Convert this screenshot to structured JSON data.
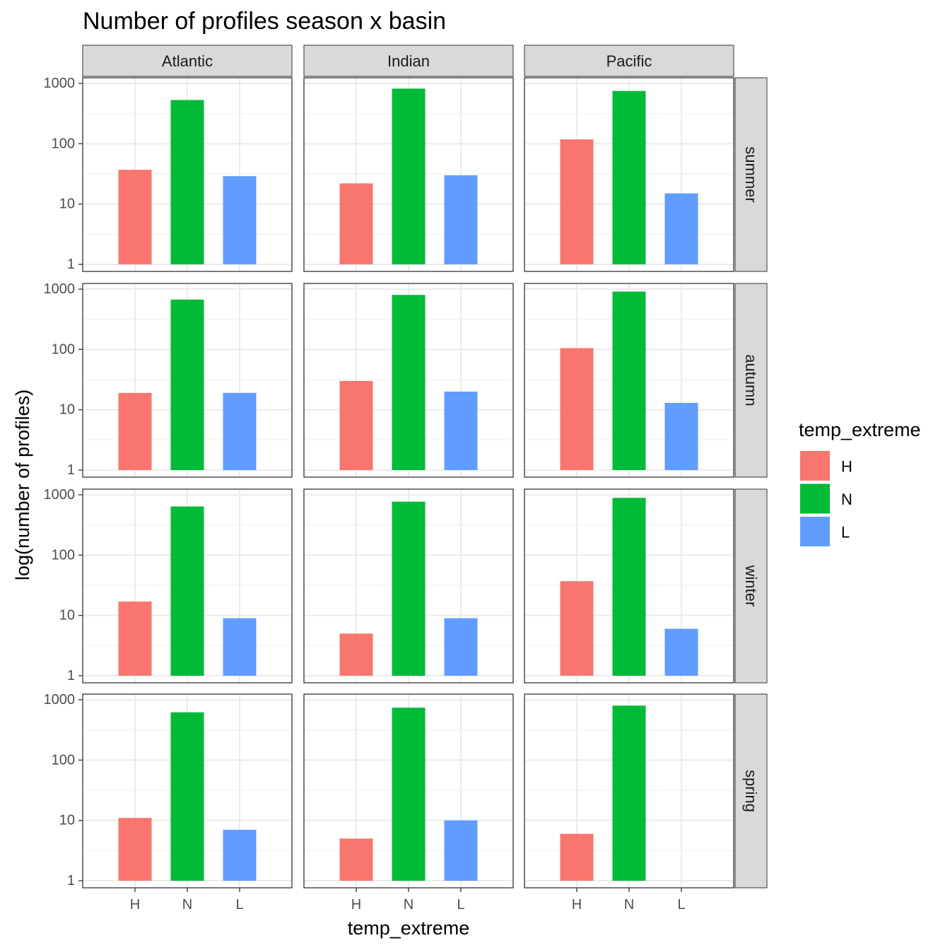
{
  "chart_data": {
    "type": "bar",
    "title": "Number of profiles season x basin",
    "xlabel": "temp_extreme",
    "ylabel": "log(number of profiles)",
    "y_scale": "log10",
    "ylim": [
      1,
      1000
    ],
    "y_ticks": [
      1,
      10,
      100,
      1000
    ],
    "grid": true,
    "legend_placement": "right",
    "facet_columns": [
      "Atlantic",
      "Indian",
      "Pacific"
    ],
    "facet_rows": [
      "summer",
      "autumn",
      "winter",
      "spring"
    ],
    "categories": [
      "H",
      "N",
      "L"
    ],
    "colors": {
      "H": "#F8766D",
      "N": "#00BA38",
      "L": "#619CFF"
    },
    "legend": {
      "title": "temp_extreme",
      "entries": [
        "H",
        "N",
        "L"
      ]
    },
    "panels": [
      {
        "row": "summer",
        "col": "Atlantic",
        "values": [
          37,
          530,
          29
        ]
      },
      {
        "row": "summer",
        "col": "Indian",
        "values": [
          22,
          820,
          30
        ]
      },
      {
        "row": "summer",
        "col": "Pacific",
        "values": [
          118,
          750,
          15
        ]
      },
      {
        "row": "autumn",
        "col": "Atlantic",
        "values": [
          19,
          670,
          19
        ]
      },
      {
        "row": "autumn",
        "col": "Indian",
        "values": [
          30,
          800,
          20
        ]
      },
      {
        "row": "autumn",
        "col": "Pacific",
        "values": [
          105,
          910,
          13
        ]
      },
      {
        "row": "winter",
        "col": "Atlantic",
        "values": [
          17,
          640,
          9
        ]
      },
      {
        "row": "winter",
        "col": "Indian",
        "values": [
          5,
          770,
          9
        ]
      },
      {
        "row": "winter",
        "col": "Pacific",
        "values": [
          37,
          890,
          6
        ]
      },
      {
        "row": "spring",
        "col": "Atlantic",
        "values": [
          11,
          620,
          7
        ]
      },
      {
        "row": "spring",
        "col": "Indian",
        "values": [
          5,
          740,
          10
        ]
      },
      {
        "row": "spring",
        "col": "Pacific",
        "values": [
          6,
          800,
          null
        ]
      }
    ]
  }
}
